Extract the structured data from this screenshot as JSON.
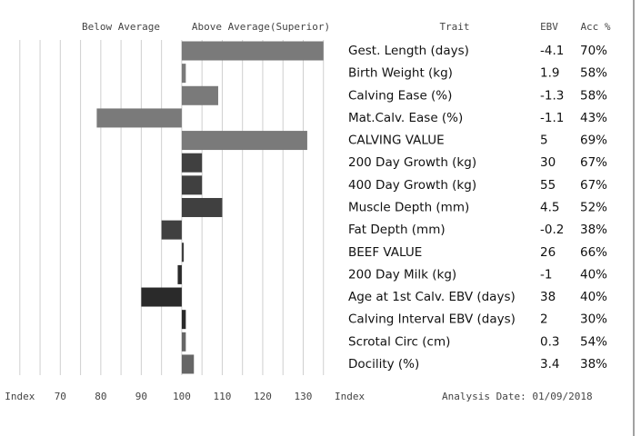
{
  "chart_data": {
    "type": "bar",
    "orientation": "horizontal",
    "left_label": "Below Average",
    "right_label": "Above Average(Superior)",
    "column_headers": [
      "Trait",
      "EBV",
      "Acc %"
    ],
    "categories": [
      "Gest. Length (days)",
      "Birth Weight (kg)",
      "Calving Ease (%)",
      "Mat.Calv. Ease (%)",
      "CALVING VALUE",
      "200 Day Growth (kg)",
      "400 Day Growth (kg)",
      "Muscle Depth (mm)",
      "Fat Depth (mm)",
      "BEEF VALUE",
      "200 Day Milk (kg)",
      "Age at 1st Calv. EBV (days)",
      "Calving Interval EBV (days)",
      "Scrotal Circ (cm)",
      "Docility (%)"
    ],
    "values": [
      135,
      101,
      109,
      79,
      131,
      105,
      105,
      110,
      95,
      100.5,
      99,
      90,
      101,
      101,
      103
    ],
    "colors": [
      "#7a7a7a",
      "#7a7a7a",
      "#7a7a7a",
      "#7a7a7a",
      "#7a7a7a",
      "#404040",
      "#404040",
      "#404040",
      "#404040",
      "#404040",
      "#2a2a2a",
      "#2a2a2a",
      "#2a2a2a",
      "#666666",
      "#666666"
    ],
    "ebv": [
      "-4.1",
      "1.9",
      "-1.3",
      "-1.1",
      "5",
      "30",
      "55",
      "4.5",
      "-0.2",
      "26",
      "-1",
      "38",
      "2",
      "0.3",
      "3.4"
    ],
    "acc": [
      "70%",
      "58%",
      "58%",
      "43%",
      "69%",
      "67%",
      "67%",
      "52%",
      "38%",
      "66%",
      "40%",
      "40%",
      "30%",
      "54%",
      "38%"
    ],
    "base": 100,
    "xlim": [
      56.9,
      140
    ],
    "xticks": [
      {
        "value": 60,
        "label": "Index"
      },
      70,
      80,
      90,
      100,
      110,
      120,
      130
    ],
    "xgrid": [
      60,
      65,
      70,
      75,
      80,
      85,
      90,
      95,
      100,
      105,
      110,
      115,
      120,
      125,
      130,
      135
    ],
    "xlabel": "Index",
    "analysis_date": "Analysis Date: 01/09/2018"
  }
}
